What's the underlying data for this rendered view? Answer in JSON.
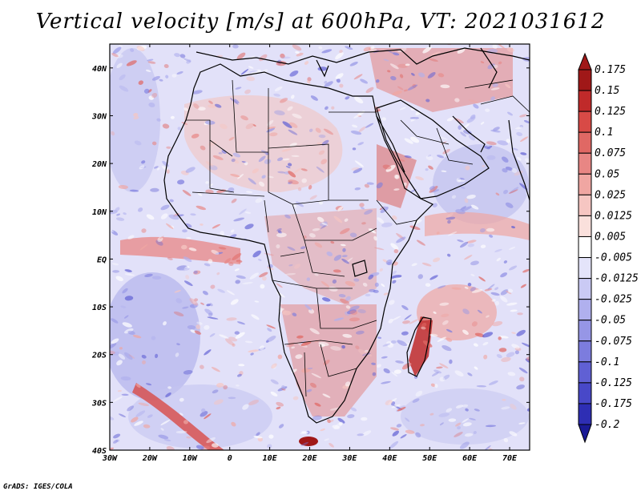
{
  "title": "Vertical velocity [m/s] at 600hPa, VT: 2021031612",
  "footer": "GrADS: IGES/COLA",
  "map": {
    "lon_range": [
      -30,
      75
    ],
    "lat_range": [
      -40,
      45
    ],
    "lon_ticks": [
      {
        "value": -30,
        "label": "30W"
      },
      {
        "value": -20,
        "label": "20W"
      },
      {
        "value": -10,
        "label": "10W"
      },
      {
        "value": 0,
        "label": "0"
      },
      {
        "value": 10,
        "label": "10E"
      },
      {
        "value": 20,
        "label": "20E"
      },
      {
        "value": 30,
        "label": "30E"
      },
      {
        "value": 40,
        "label": "40E"
      },
      {
        "value": 50,
        "label": "50E"
      },
      {
        "value": 60,
        "label": "60E"
      },
      {
        "value": 70,
        "label": "70E"
      }
    ],
    "lat_ticks": [
      {
        "value": 40,
        "label": "40N"
      },
      {
        "value": 30,
        "label": "30N"
      },
      {
        "value": 20,
        "label": "20N"
      },
      {
        "value": 10,
        "label": "10N"
      },
      {
        "value": 0,
        "label": "EQ"
      },
      {
        "value": -10,
        "label": "10S"
      },
      {
        "value": -20,
        "label": "20S"
      },
      {
        "value": -30,
        "label": "30S"
      },
      {
        "value": -40,
        "label": "40S"
      }
    ]
  },
  "colorbar": {
    "labels": [
      "0.175",
      "0.15",
      "0.125",
      "0.1",
      "0.075",
      "0.05",
      "0.025",
      "0.0125",
      "0.005",
      "-0.005",
      "-0.0125",
      "-0.025",
      "-0.05",
      "-0.075",
      "-0.1",
      "-0.125",
      "-0.175",
      "-0.2"
    ],
    "colors": [
      "#a01818",
      "#c02a2a",
      "#d84a46",
      "#e06864",
      "#e88684",
      "#f0a6a2",
      "#f6c6c2",
      "#fae0dc",
      "#ffffff",
      "#e4e4fa",
      "#cacaf4",
      "#b0b0ee",
      "#9696e6",
      "#7c7cde",
      "#6060d4",
      "#4848c8",
      "#2e2eb4",
      "#1a1a96"
    ]
  }
}
